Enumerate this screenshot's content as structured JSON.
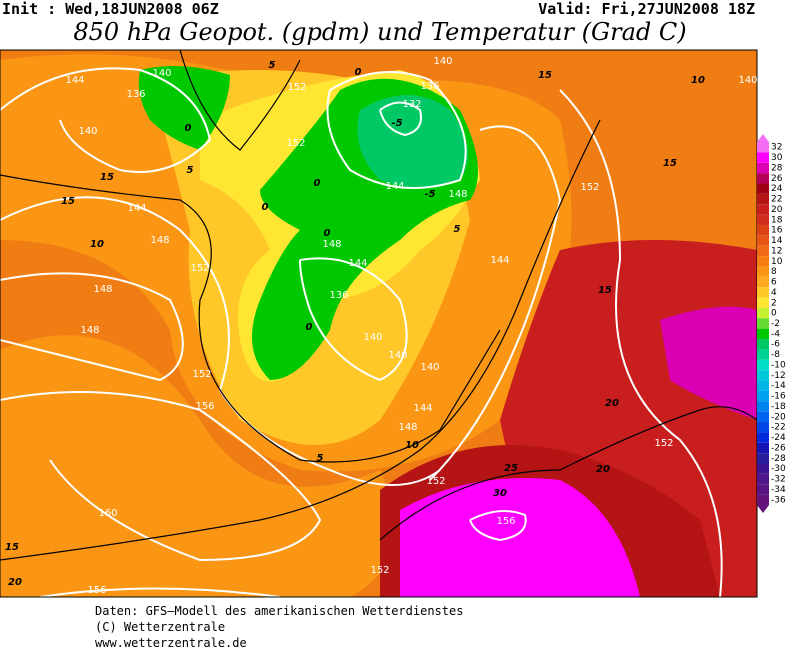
{
  "header": {
    "init": "Init : Wed,18JUN2008 06Z",
    "valid": "Valid: Fri,27JUN2008 18Z",
    "title": "850 hPa Geopot. (gpdm) und Temperatur (Grad C)"
  },
  "map": {
    "labels": [
      144,
      140,
      136,
      0,
      5,
      140,
      15,
      15,
      144,
      148,
      10,
      152,
      148,
      148,
      152,
      156,
      160,
      15,
      20,
      156,
      152,
      152,
      0,
      0,
      0,
      148,
      144,
      136,
      0,
      140,
      140,
      140,
      144,
      148,
      10,
      5,
      152,
      25,
      30,
      156,
      152,
      20,
      152,
      20,
      15,
      144,
      5,
      148,
      -5,
      144,
      132,
      -5,
      136,
      140,
      0,
      5,
      15,
      152,
      15,
      10,
      140
    ]
  },
  "colorbar": {
    "levels": [
      {
        "value": 32,
        "color": "#f46ef4"
      },
      {
        "value": 30,
        "color": "#ff00ff"
      },
      {
        "value": 28,
        "color": "#dc00b4"
      },
      {
        "value": 26,
        "color": "#b4005a"
      },
      {
        "value": 24,
        "color": "#a00014"
      },
      {
        "value": 22,
        "color": "#b41414"
      },
      {
        "value": 20,
        "color": "#c81e1e"
      },
      {
        "value": 18,
        "color": "#d22d1e"
      },
      {
        "value": 16,
        "color": "#dc4114"
      },
      {
        "value": 14,
        "color": "#e65514"
      },
      {
        "value": 12,
        "color": "#f06914"
      },
      {
        "value": 10,
        "color": "#f57d14"
      },
      {
        "value": 8,
        "color": "#fa9614"
      },
      {
        "value": 6,
        "color": "#ffaa1e"
      },
      {
        "value": 4,
        "color": "#ffc828"
      },
      {
        "value": 2,
        "color": "#ffe632"
      },
      {
        "value": 0,
        "color": "#c8f032"
      },
      {
        "value": -2,
        "color": "#64dc32"
      },
      {
        "value": -4,
        "color": "#00c800"
      },
      {
        "value": -6,
        "color": "#00c864"
      },
      {
        "value": -8,
        "color": "#00d296"
      },
      {
        "value": -10,
        "color": "#00dcc8"
      },
      {
        "value": -12,
        "color": "#00c8dc"
      },
      {
        "value": -14,
        "color": "#00b4e6"
      },
      {
        "value": -16,
        "color": "#00a0f0"
      },
      {
        "value": -18,
        "color": "#0082f0"
      },
      {
        "value": -20,
        "color": "#0064f0"
      },
      {
        "value": -22,
        "color": "#0046e6"
      },
      {
        "value": -24,
        "color": "#0028dc"
      },
      {
        "value": -26,
        "color": "#1414b4"
      },
      {
        "value": -28,
        "color": "#281e9b"
      },
      {
        "value": -30,
        "color": "#3c1491"
      },
      {
        "value": -32,
        "color": "#50148c"
      },
      {
        "value": -34,
        "color": "#5a1482"
      },
      {
        "value": -36,
        "color": "#641478"
      }
    ]
  },
  "footer": {
    "lines": [
      "Daten: GFS–Modell des amerikanischen Wetterdienstes",
      "(C) Wetterzentrale",
      "www.wetterzentrale.de"
    ]
  }
}
